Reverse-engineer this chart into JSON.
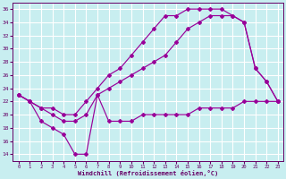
{
  "background_color": "#c8eef0",
  "grid_color": "#ffffff",
  "line_color": "#990099",
  "tick_color": "#660066",
  "xlabel": "Windchill (Refroidissement éolien,°C)",
  "x_ticks": [
    0,
    1,
    2,
    3,
    4,
    5,
    6,
    7,
    8,
    9,
    10,
    11,
    12,
    13,
    14,
    15,
    16,
    17,
    18,
    19,
    20,
    21,
    22,
    23
  ],
  "y_ticks": [
    14,
    16,
    18,
    20,
    22,
    24,
    26,
    28,
    30,
    32,
    34,
    36
  ],
  "ylim": [
    13.0,
    37.0
  ],
  "xlim": [
    -0.5,
    23.5
  ],
  "curves": [
    {
      "x": [
        0,
        1,
        2,
        3,
        4,
        5,
        6,
        7,
        8,
        9,
        10,
        11,
        12,
        13,
        14,
        15,
        16,
        17,
        18,
        19,
        20,
        21,
        22,
        23
      ],
      "y": [
        23,
        22,
        21,
        21,
        20,
        20,
        22,
        24,
        26,
        27,
        29,
        31,
        33,
        35,
        35,
        36,
        36,
        36,
        36,
        35,
        34,
        27,
        25,
        22
      ]
    },
    {
      "x": [
        0,
        1,
        2,
        3,
        4,
        5,
        6,
        7,
        8,
        9,
        10,
        11,
        12,
        13,
        14,
        15,
        16,
        17,
        18,
        19,
        20,
        21,
        22,
        23
      ],
      "y": [
        23,
        22,
        21,
        20,
        19,
        19,
        20,
        23,
        24,
        25,
        26,
        27,
        28,
        29,
        31,
        33,
        34,
        35,
        35,
        35,
        34,
        27,
        25,
        22
      ]
    },
    {
      "x": [
        0,
        1,
        2,
        3,
        4,
        5,
        6,
        7,
        8,
        9,
        10,
        11,
        12,
        13,
        14,
        15,
        16,
        17,
        18,
        19,
        20,
        21,
        22,
        23
      ],
      "y": [
        23,
        22,
        19,
        18,
        17,
        14,
        14,
        23,
        19,
        19,
        19,
        20,
        20,
        20,
        20,
        20,
        21,
        21,
        21,
        21,
        22,
        22,
        22,
        22
      ]
    }
  ]
}
